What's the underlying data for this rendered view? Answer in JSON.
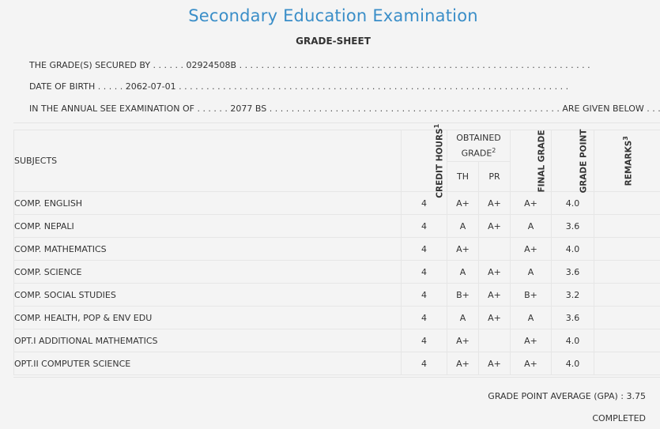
{
  "header": {
    "title": "Secondary Education Examination",
    "subtitle": "GRADE-SHEET"
  },
  "info": {
    "secured_label": "THE GRADE(S) SECURED BY",
    "secured_value": "02924508B",
    "dob_label": "DATE OF BIRTH",
    "dob_value": "2062-07-01",
    "exam_label": "IN THE ANNUAL SEE EXAMINATION OF",
    "exam_value": "2077 BS",
    "exam_suffix": "ARE GIVEN BELOW"
  },
  "table": {
    "headers": {
      "subjects": "SUBJECTS",
      "credit_hours": "CREDIT HOURS",
      "credit_sup": "1",
      "obtained_grade": "OBTAINED GRADE",
      "obtained_sup": "2",
      "final_grade": "FINAL GRADE",
      "grade_point": "GRADE POINT",
      "remarks": "REMARKS",
      "remarks_sup": "3",
      "th": "TH",
      "pr": "PR"
    },
    "rows": [
      {
        "subject": "COMP. ENGLISH",
        "credit": "4",
        "th": "A+",
        "pr": "A+",
        "final": "A+",
        "gp": "4.0",
        "remarks": ""
      },
      {
        "subject": "COMP. NEPALI",
        "credit": "4",
        "th": "A",
        "pr": "A+",
        "final": "A",
        "gp": "3.6",
        "remarks": ""
      },
      {
        "subject": "COMP. MATHEMATICS",
        "credit": "4",
        "th": "A+",
        "pr": "",
        "final": "A+",
        "gp": "4.0",
        "remarks": ""
      },
      {
        "subject": "COMP. SCIENCE",
        "credit": "4",
        "th": "A",
        "pr": "A+",
        "final": "A",
        "gp": "3.6",
        "remarks": ""
      },
      {
        "subject": "COMP. SOCIAL STUDIES",
        "credit": "4",
        "th": "B+",
        "pr": "A+",
        "final": "B+",
        "gp": "3.2",
        "remarks": ""
      },
      {
        "subject": "COMP. HEALTH, POP & ENV EDU",
        "credit": "4",
        "th": "A",
        "pr": "A+",
        "final": "A",
        "gp": "3.6",
        "remarks": ""
      },
      {
        "subject": "OPT.I ADDITIONAL MATHEMATICS",
        "credit": "4",
        "th": "A+",
        "pr": "",
        "final": "A+",
        "gp": "4.0",
        "remarks": ""
      },
      {
        "subject": "OPT.II COMPUTER SCIENCE",
        "credit": "4",
        "th": "A+",
        "pr": "A+",
        "final": "A+",
        "gp": "4.0",
        "remarks": ""
      }
    ]
  },
  "footer": {
    "gpa_label": "GRADE POINT AVERAGE (GPA) :",
    "gpa_value": "3.75",
    "status": "COMPLETED"
  }
}
